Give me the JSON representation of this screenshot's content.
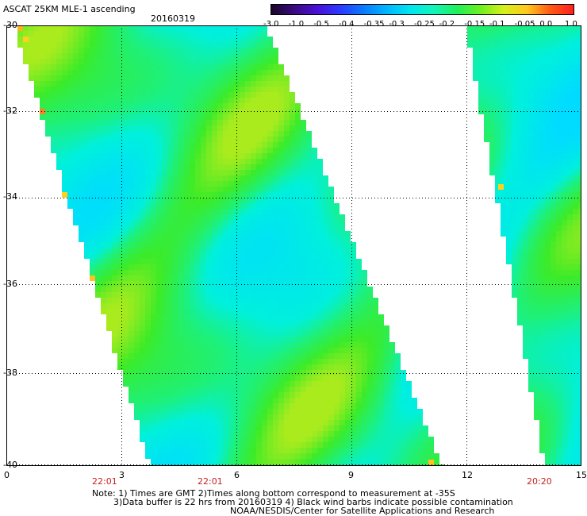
{
  "header": {
    "title": "ASCAT 25KM MLE-1 ascending",
    "date": "20160319"
  },
  "colorbar": {
    "tick_labels": [
      "-3.0",
      "-1.0",
      "-0.5",
      "-0.4",
      "-0.35",
      "-0.3",
      "-0.25",
      "-0.2",
      "-0.15",
      "-0.1",
      "-0.05",
      "0.0",
      "1.0"
    ],
    "colors": [
      "#1a0626",
      "#3a0a82",
      "#4a10d8",
      "#2a3cff",
      "#0a7cff",
      "#00b8ff",
      "#00e6f0",
      "#12f5b8",
      "#1ef05a",
      "#6ef01e",
      "#d6f01a",
      "#ffc81e",
      "#ff5a14",
      "#ff1e1e"
    ]
  },
  "map": {
    "lat_labels": [
      "-30",
      "-32",
      "-34",
      "-36",
      "-38",
      "-40"
    ],
    "lon_labels": [
      "0",
      "3",
      "6",
      "9",
      "12",
      "15"
    ],
    "time_labels": [
      "22:01",
      "22:01",
      "20:20"
    ],
    "grid": true
  },
  "notes": {
    "line1": "Note: 1) Times are GMT 2)Times along bottom correspond to measurement at -35S",
    "line2": "3)Data buffer is 22 hrs from 20160319 4) Black wind barbs indicate possible contamination",
    "line3": "NOAA/NESDIS/Center for Satellite Applications and Research"
  }
}
